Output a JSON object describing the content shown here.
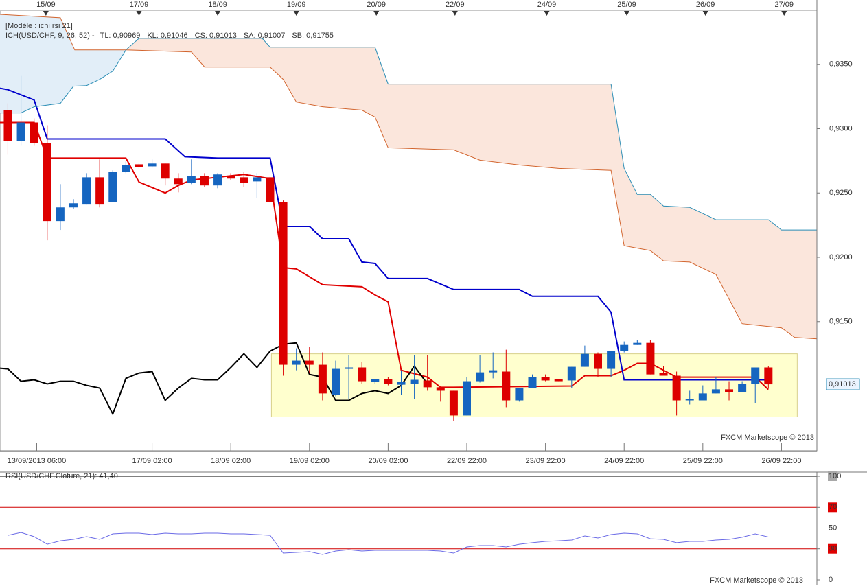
{
  "chart_data": [
    {
      "type": "candlestick",
      "title": "[Modèle : ichi rsi 21]",
      "indicator": "ICH(USD/CHF, 9, 26, 52) -",
      "watermark": "FXCM Marketscope © 2013",
      "xlim": [
        -0.6,
        61.7
      ],
      "ylim": [
        0.9056,
        0.9392
      ],
      "yticks": [
        {
          "value": 0.935,
          "label": "0,9350"
        },
        {
          "value": 0.93,
          "label": "0,9300"
        },
        {
          "value": 0.925,
          "label": "0,9250"
        },
        {
          "value": 0.92,
          "label": "0,9200"
        },
        {
          "value": 0.915,
          "label": "0,9150"
        }
      ],
      "xticks": [
        {
          "value": 2.2,
          "label": "13/09/2013 06:00"
        },
        {
          "value": 11,
          "label": "17/09 02:00"
        },
        {
          "value": 17,
          "label": "18/09 02:00"
        },
        {
          "value": 23,
          "label": "19/09 02:00"
        },
        {
          "value": 29,
          "label": "20/09 02:00"
        },
        {
          "value": 35,
          "label": "22/09 22:00"
        },
        {
          "value": 41,
          "label": "23/09 22:00"
        },
        {
          "value": 47,
          "label": "24/09 22:00"
        },
        {
          "value": 53,
          "label": "25/09 22:00"
        },
        {
          "value": 59,
          "label": "26/09 22:00"
        }
      ],
      "x2ticks": [
        {
          "value": 2.9,
          "label": "15/09"
        },
        {
          "value": 10,
          "label": "17/09"
        },
        {
          "value": 16,
          "label": "18/09"
        },
        {
          "value": 22,
          "label": "19/09"
        },
        {
          "value": 28.1,
          "label": "20/09"
        },
        {
          "value": 34.1,
          "label": "22/09"
        },
        {
          "value": 41.1,
          "label": "24/09"
        },
        {
          "value": 47.2,
          "label": "25/09"
        },
        {
          "value": 53.2,
          "label": "26/09"
        },
        {
          "value": 59.2,
          "label": "27/09"
        }
      ],
      "up_color": "#1565c0",
      "down_color": "#dd0000",
      "x": [
        0,
        1,
        2,
        3,
        4,
        5,
        6,
        7,
        8,
        9,
        10,
        11,
        12,
        13,
        14,
        15,
        16,
        17,
        18,
        19,
        20,
        21,
        22,
        23,
        24,
        25,
        26,
        27,
        28,
        29,
        30,
        31,
        32,
        33,
        34,
        35,
        36,
        37,
        38,
        39,
        40,
        41,
        42,
        43,
        44,
        45,
        46,
        47,
        48,
        49,
        50,
        51,
        52,
        53,
        54,
        55,
        56,
        57,
        58
      ],
      "open": [
        0.93144,
        0.92904,
        0.93048,
        0.92888,
        0.92282,
        0.92388,
        0.9241,
        0.92622,
        0.92431,
        0.92665,
        0.92723,
        0.92707,
        0.92729,
        0.92612,
        0.9258,
        0.92633,
        0.92559,
        0.92633,
        0.92622,
        0.9259,
        0.92622,
        0.92431,
        0.91165,
        0.91197,
        0.91165,
        0.90931,
        0.91133,
        0.91144,
        0.91032,
        0.91053,
        0.9101,
        0.91016,
        0.91043,
        0.9099,
        0.90963,
        0.90771,
        0.91037,
        0.91106,
        0.91112,
        0.90888,
        0.90984,
        0.91069,
        0.91053,
        0.91043,
        0.91149,
        0.9125,
        0.91133,
        0.91271,
        0.91319,
        0.91335,
        0.91101,
        0.9108,
        0.90888,
        0.90888,
        0.90942,
        0.90974,
        0.90952,
        0.91016,
        0.91144
      ],
      "high": [
        0.93197,
        0.9341,
        0.9308,
        0.93027,
        0.92569,
        0.92452,
        0.92654,
        0.92761,
        0.92676,
        0.92745,
        0.92734,
        0.92761,
        0.92729,
        0.92654,
        0.92761,
        0.92654,
        0.92654,
        0.92654,
        0.92665,
        0.92654,
        0.92633,
        0.92442,
        0.91293,
        0.91303,
        0.91261,
        0.91197,
        0.9124,
        0.91186,
        0.91053,
        0.91069,
        0.91122,
        0.9124,
        0.9124,
        0.9099,
        0.90963,
        0.91069,
        0.9124,
        0.91261,
        0.91282,
        0.90984,
        0.9109,
        0.9109,
        0.91053,
        0.91149,
        0.91314,
        0.91261,
        0.91271,
        0.91346,
        0.91356,
        0.91356,
        0.91154,
        0.91112,
        0.90963,
        0.91005,
        0.91069,
        0.91037,
        0.91037,
        0.91144,
        0.91154
      ],
      "low": [
        0.92798,
        0.92867,
        0.92867,
        0.92133,
        0.92213,
        0.92378,
        0.9241,
        0.92388,
        0.92431,
        0.92654,
        0.92686,
        0.92697,
        0.92559,
        0.92505,
        0.92569,
        0.92548,
        0.92537,
        0.92601,
        0.92548,
        0.92463,
        0.9242,
        0.9108,
        0.91122,
        0.91101,
        0.90888,
        0.9092,
        0.90899,
        0.91016,
        0.91016,
        0.91005,
        0.90931,
        0.90899,
        0.90963,
        0.90878,
        0.90729,
        0.90771,
        0.91027,
        0.91059,
        0.90835,
        0.90878,
        0.90984,
        0.91037,
        0.91037,
        0.90984,
        0.91149,
        0.91069,
        0.91069,
        0.91261,
        0.91319,
        0.9109,
        0.9108,
        0.90771,
        0.90856,
        0.90888,
        0.90942,
        0.90888,
        0.90952,
        0.90867,
        0.90984
      ],
      "close": [
        0.92904,
        0.93048,
        0.92888,
        0.92282,
        0.92388,
        0.9242,
        0.92622,
        0.9241,
        0.92665,
        0.92718,
        0.92702,
        0.92729,
        0.92612,
        0.92569,
        0.92633,
        0.92559,
        0.92644,
        0.92612,
        0.9258,
        0.92622,
        0.92431,
        0.91165,
        0.91197,
        0.91165,
        0.90942,
        0.91133,
        0.91144,
        0.91037,
        0.91053,
        0.91016,
        0.91032,
        0.91048,
        0.9099,
        0.90963,
        0.90771,
        0.91037,
        0.91106,
        0.91122,
        0.90888,
        0.90984,
        0.91069,
        0.91043,
        0.91037,
        0.91149,
        0.9125,
        0.91133,
        0.91271,
        0.91319,
        0.91335,
        0.9109,
        0.9108,
        0.90888,
        0.90899,
        0.90942,
        0.90974,
        0.90952,
        0.91016,
        0.91144,
        0.91013
      ],
      "lines": [
        {
          "name": "TL: 0,90969",
          "color": "#e00000",
          "width": 2,
          "x": [
            -0.6,
            2,
            3,
            9,
            10,
            12,
            13,
            14,
            18,
            20,
            21,
            22,
            24,
            27,
            28,
            29,
            30,
            32,
            33,
            34,
            43,
            44,
            46,
            47,
            48,
            49,
            51,
            57,
            58
          ],
          "values": [
            0.93048,
            0.93048,
            0.92771,
            0.92771,
            0.92585,
            0.925,
            0.92559,
            0.92601,
            0.92644,
            0.92612,
            0.9192,
            0.9191,
            0.91787,
            0.91771,
            0.91707,
            0.91654,
            0.91122,
            0.91069,
            0.9099,
            0.9099,
            0.91,
            0.9108,
            0.9108,
            0.91122,
            0.91176,
            0.91176,
            0.91069,
            0.91069,
            0.90973
          ]
        },
        {
          "name": "KL: 0,91046",
          "color": "#0000cc",
          "width": 2,
          "x": [
            -0.6,
            0,
            2,
            3,
            12,
            13.5,
            16,
            20,
            21,
            23,
            24,
            26,
            27,
            28,
            29,
            32,
            34,
            39,
            40,
            45,
            46,
            47,
            58
          ],
          "values": [
            0.93314,
            0.93303,
            0.93223,
            0.9292,
            0.9292,
            0.92782,
            0.92771,
            0.92771,
            0.9224,
            0.9224,
            0.92144,
            0.92144,
            0.91963,
            0.91952,
            0.91835,
            0.91835,
            0.9175,
            0.9175,
            0.91697,
            0.91697,
            0.91574,
            0.91048,
            0.91048
          ]
        },
        {
          "name": "CS: 0,91013",
          "color": "#000000",
          "width": 2,
          "x": [
            -0.6,
            0,
            1,
            2,
            3,
            4,
            5,
            6,
            7,
            8,
            9,
            10,
            11,
            12,
            13,
            14,
            15,
            16,
            17,
            18,
            19,
            20,
            21,
            22,
            23,
            24,
            25,
            26,
            27,
            28,
            29,
            30,
            31,
            32
          ],
          "values": [
            0.91138,
            0.91133,
            0.91037,
            0.91048,
            0.91016,
            0.91037,
            0.91037,
            0.91005,
            0.90984,
            0.90782,
            0.91059,
            0.91101,
            0.91112,
            0.90888,
            0.90984,
            0.91059,
            0.91048,
            0.91048,
            0.91144,
            0.9125,
            0.91144,
            0.91271,
            0.91324,
            0.91335,
            0.9109,
            0.91069,
            0.90888,
            0.90888,
            0.90942,
            0.90963,
            0.90942,
            0.91005,
            0.91154,
            0.91016
          ]
        },
        {
          "name": "SA: 0,91007",
          "color": "#d2642d",
          "width": 1,
          "x": [
            -0.6,
            4,
            5.1,
            9,
            14,
            15,
            20,
            21,
            22,
            24,
            27,
            28,
            29,
            34,
            36,
            39,
            42,
            46,
            47,
            49,
            50,
            52,
            54,
            56,
            59,
            60,
            61.7
          ],
          "values": [
            0.93888,
            0.93862,
            0.93612,
            0.93612,
            0.93596,
            0.93479,
            0.93479,
            0.93383,
            0.93207,
            0.9317,
            0.93144,
            0.9309,
            0.92851,
            0.92835,
            0.92755,
            0.92718,
            0.92691,
            0.92676,
            0.9209,
            0.92053,
            0.91973,
            0.91963,
            0.91867,
            0.91484,
            0.91452,
            0.91378,
            0.91367
          ]
        },
        {
          "name": "SB: 0,91755",
          "color": "#2a8db5",
          "width": 1,
          "x": [
            -0.6,
            1,
            2,
            4,
            5,
            6,
            7,
            8,
            9,
            10,
            19.4,
            20,
            28,
            29,
            46,
            47,
            48,
            49,
            50,
            52,
            54,
            58,
            59,
            61.7
          ],
          "values": [
            0.93122,
            0.93122,
            0.9317,
            0.93197,
            0.9333,
            0.93335,
            0.93383,
            0.93447,
            0.93612,
            0.93702,
            0.93702,
            0.93633,
            0.93633,
            0.93346,
            0.93346,
            0.92691,
            0.92489,
            0.92489,
            0.92399,
            0.92388,
            0.92293,
            0.92293,
            0.92213,
            0.92213
          ]
        }
      ],
      "cloud_colors": [
        "#e2eef8",
        "#fbe6dc"
      ],
      "highlight": {
        "x": [
          20.1,
          60.2
        ],
        "y": [
          0.9076,
          0.9125
        ],
        "color": "#ffffc6"
      },
      "last_price": {
        "value": 0.91013,
        "label": "0,91013"
      }
    },
    {
      "type": "line",
      "title": "RSI(USD/CHF.Cloture, 21): 41,40",
      "watermark": "FXCM Marketscope © 2013",
      "color": "#6a6ae6",
      "xlim": [
        -0.6,
        61.7
      ],
      "ylim": [
        0,
        100
      ],
      "yticks": [
        100,
        70,
        50,
        30,
        0
      ],
      "tick_box_colors": [
        "#a8a8a8",
        "#e00000",
        "none",
        "#e00000",
        "none"
      ],
      "hlines": [
        {
          "value": 100,
          "color": "#000000"
        },
        {
          "value": 70,
          "color": "#d00000"
        },
        {
          "value": 50,
          "color": "#000000"
        },
        {
          "value": 30,
          "color": "#d00000"
        }
      ],
      "x": [
        0,
        1,
        2,
        3,
        4,
        5,
        6,
        7,
        8,
        9,
        10,
        11,
        12,
        13,
        14,
        15,
        16,
        17,
        18,
        19,
        20,
        21,
        22,
        23,
        24,
        25,
        26,
        27,
        28,
        29,
        30,
        31,
        32,
        33,
        34,
        35,
        36,
        37,
        38,
        39,
        40,
        41,
        42,
        43,
        44,
        45,
        46,
        47,
        48,
        49,
        50,
        51,
        52,
        53,
        54,
        55,
        56,
        57,
        58
      ],
      "values": [
        43.0,
        45.7,
        41.7,
        34.4,
        37.7,
        39.1,
        41.7,
        39.1,
        44.4,
        45.0,
        45.0,
        43.7,
        45.0,
        44.4,
        44.4,
        45.0,
        45.0,
        44.4,
        44.4,
        43.7,
        43.0,
        25.8,
        26.5,
        27.2,
        24.5,
        27.8,
        29.1,
        27.8,
        28.5,
        28.5,
        28.5,
        28.5,
        28.5,
        27.8,
        25.8,
        31.8,
        33.1,
        33.1,
        31.8,
        34.4,
        35.8,
        37.1,
        37.7,
        38.4,
        42.4,
        40.4,
        43.7,
        45.0,
        44.4,
        39.7,
        39.1,
        35.8,
        37.1,
        37.1,
        38.4,
        39.1,
        41.1,
        44.4,
        41.4
      ]
    }
  ]
}
